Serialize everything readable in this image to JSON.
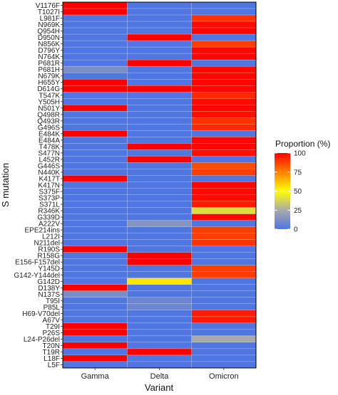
{
  "chart_data": {
    "type": "heatmap",
    "title": "",
    "xlabel": "Variant",
    "ylabel": "S mutation",
    "x_categories": [
      "Gamma",
      "Delta",
      "Omicron"
    ],
    "y_categories": [
      "V1176F",
      "T1027I",
      "L981F",
      "N969K",
      "Q954H",
      "D950N",
      "N856K",
      "D796Y",
      "N764K",
      "P681R",
      "P681H",
      "N679K",
      "H655Y",
      "D614G",
      "T547K",
      "Y505H",
      "N501Y",
      "Q498R",
      "Q493R",
      "G496S",
      "E484K",
      "E484A",
      "T478K",
      "S477N",
      "L452R",
      "G446S",
      "N440K",
      "K417T",
      "K417N",
      "S375F",
      "S373P",
      "S371L",
      "R346K",
      "G339D",
      "A222V",
      "EPE214ins",
      "L212I",
      "N211del",
      "R190S",
      "R158G",
      "E156-F157del",
      "Y145D",
      "G142-Y144del",
      "G142D",
      "D138Y",
      "N137S",
      "T95I",
      "P85L",
      "H69-V70del",
      "A67V",
      "T29I",
      "P26S",
      "L24-P26del",
      "T20N",
      "T19R",
      "L18F",
      "L5F"
    ],
    "values": [
      [
        100,
        0,
        0
      ],
      [
        100,
        0,
        0
      ],
      [
        0,
        0,
        90
      ],
      [
        0,
        0,
        98
      ],
      [
        0,
        0,
        99
      ],
      [
        0,
        100,
        0
      ],
      [
        0,
        0,
        88
      ],
      [
        0,
        0,
        99
      ],
      [
        0,
        0,
        99
      ],
      [
        0,
        100,
        0
      ],
      [
        12,
        0,
        98
      ],
      [
        0,
        0,
        99
      ],
      [
        100,
        0,
        99
      ],
      [
        100,
        100,
        99
      ],
      [
        0,
        0,
        92
      ],
      [
        0,
        0,
        98
      ],
      [
        100,
        0,
        99
      ],
      [
        0,
        0,
        97
      ],
      [
        0,
        0,
        90
      ],
      [
        0,
        0,
        92
      ],
      [
        100,
        0,
        0
      ],
      [
        0,
        0,
        99
      ],
      [
        0,
        100,
        99
      ],
      [
        0,
        0,
        97
      ],
      [
        0,
        100,
        0
      ],
      [
        0,
        0,
        85
      ],
      [
        0,
        0,
        88
      ],
      [
        100,
        0,
        0
      ],
      [
        0,
        0,
        99
      ],
      [
        0,
        0,
        98
      ],
      [
        0,
        0,
        98
      ],
      [
        0,
        0,
        95
      ],
      [
        0,
        0,
        40
      ],
      [
        0,
        0,
        99
      ],
      [
        0,
        15,
        0
      ],
      [
        0,
        0,
        88
      ],
      [
        0,
        0,
        88
      ],
      [
        0,
        0,
        90
      ],
      [
        100,
        0,
        0
      ],
      [
        0,
        100,
        0
      ],
      [
        0,
        100,
        0
      ],
      [
        0,
        0,
        88
      ],
      [
        0,
        0,
        88
      ],
      [
        0,
        55,
        0
      ],
      [
        100,
        0,
        0
      ],
      [
        12,
        0,
        0
      ],
      [
        0,
        8,
        0
      ],
      [
        0,
        8,
        0
      ],
      [
        0,
        0,
        95
      ],
      [
        0,
        0,
        95
      ],
      [
        100,
        0,
        0
      ],
      [
        100,
        0,
        0
      ],
      [
        0,
        0,
        25
      ],
      [
        100,
        0,
        0
      ],
      [
        0,
        100,
        0
      ],
      [
        100,
        0,
        0
      ],
      [
        0,
        0,
        0
      ]
    ],
    "legend": {
      "title": "Proportion (%)",
      "ticks": [
        0,
        25,
        50,
        75,
        100
      ],
      "range": [
        0,
        100
      ],
      "placement": "right"
    },
    "colors": {
      "low": "#5076e1",
      "mid": "#ffff00",
      "high": "#ff0000",
      "stops": [
        "#5076e1",
        "#a9a9a9",
        "#ffff00",
        "#ff8000",
        "#ff0000"
      ]
    },
    "grid": false
  }
}
